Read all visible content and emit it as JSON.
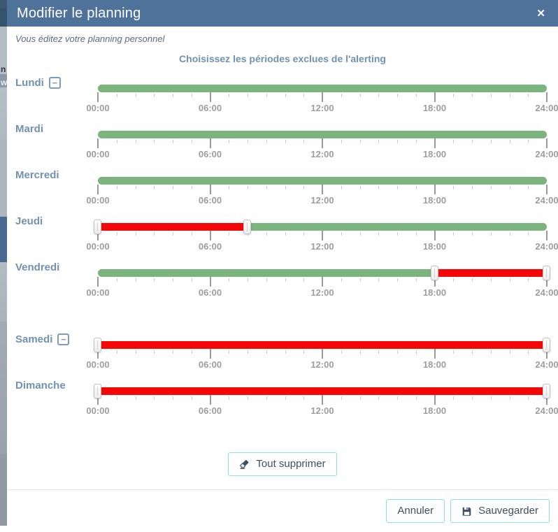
{
  "modal": {
    "title": "Modifier le planning",
    "close_icon": "✕",
    "subtitle": "Vous éditez votre planning personnel",
    "heading": "Choisissez les périodes exclues de l'alerting"
  },
  "schedule": {
    "axis": {
      "tick_labels": [
        "00:00",
        "06:00",
        "12:00",
        "18:00",
        "24:00"
      ],
      "tick_hours": [
        0,
        6,
        12,
        18,
        24
      ],
      "minor_tick_every_hours": 1,
      "range_hours": [
        0,
        24
      ]
    },
    "colors": {
      "included": "#7cb47e",
      "excluded": "#f50707"
    },
    "remove_icon": "−",
    "gap_after_index": 4,
    "days": [
      {
        "label": "Lundi",
        "removable": true,
        "segments": [
          {
            "from": 0,
            "to": 24,
            "state": "included"
          }
        ],
        "handles": []
      },
      {
        "label": "Mardi",
        "removable": false,
        "segments": [
          {
            "from": 0,
            "to": 24,
            "state": "included"
          }
        ],
        "handles": []
      },
      {
        "label": "Mercredi",
        "removable": false,
        "segments": [
          {
            "from": 0,
            "to": 24,
            "state": "included"
          }
        ],
        "handles": []
      },
      {
        "label": "Jeudi",
        "removable": false,
        "segments": [
          {
            "from": 0,
            "to": 8,
            "state": "excluded"
          },
          {
            "from": 8,
            "to": 24,
            "state": "included"
          }
        ],
        "handles": [
          0,
          8
        ]
      },
      {
        "label": "Vendredi",
        "removable": false,
        "segments": [
          {
            "from": 0,
            "to": 18,
            "state": "included"
          },
          {
            "from": 18,
            "to": 24,
            "state": "excluded"
          }
        ],
        "handles": [
          18,
          24
        ]
      },
      {
        "label": "Samedi",
        "removable": true,
        "segments": [
          {
            "from": 0,
            "to": 24,
            "state": "excluded"
          }
        ],
        "handles": [
          0,
          24
        ]
      },
      {
        "label": "Dimanche",
        "removable": false,
        "segments": [
          {
            "from": 0,
            "to": 24,
            "state": "excluded"
          }
        ],
        "handles": [
          0,
          24
        ]
      }
    ]
  },
  "actions": {
    "clear_all": "Tout supprimer",
    "cancel": "Annuler",
    "save": "Sauvegarder"
  },
  "page_edge": {
    "fragments": [
      "n",
      "w"
    ]
  }
}
